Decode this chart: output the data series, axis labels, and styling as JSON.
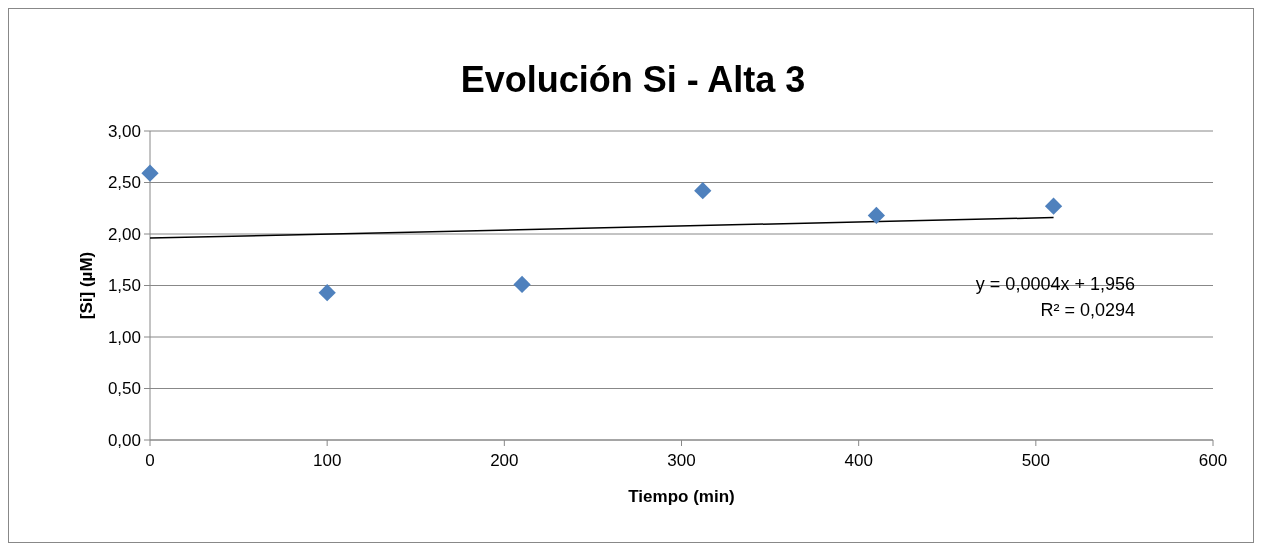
{
  "chart_data": {
    "type": "scatter",
    "title": "Evolución Si - Alta 3",
    "xlabel": "Tiempo (min)",
    "ylabel": "[Si] (µM)",
    "xlim": [
      0,
      600
    ],
    "xticks": [
      0,
      100,
      200,
      300,
      400,
      500,
      600
    ],
    "ylim": [
      0,
      3
    ],
    "yticks": [
      {
        "value": 0,
        "label": "0,00"
      },
      {
        "value": 0.5,
        "label": "0,50"
      },
      {
        "value": 1,
        "label": "1,00"
      },
      {
        "value": 1.5,
        "label": "1,50"
      },
      {
        "value": 2,
        "label": "2,00"
      },
      {
        "value": 2.5,
        "label": "2,50"
      },
      {
        "value": 3,
        "label": "3,00"
      }
    ],
    "grid": "y",
    "marker": "diamond",
    "annotations": [
      "y = 0,0004x + 1,956",
      "R² = 0,0294"
    ],
    "series": [
      {
        "color": "#4f81bd",
        "x": [
          0,
          100,
          210,
          312,
          410,
          510
        ],
        "values": [
          2.59,
          1.43,
          1.51,
          2.42,
          2.18,
          2.27
        ]
      },
      {
        "type": "line",
        "marker": "none",
        "color": "#000000",
        "x": [
          0,
          510
        ],
        "values": [
          1.96,
          2.16
        ]
      }
    ]
  }
}
